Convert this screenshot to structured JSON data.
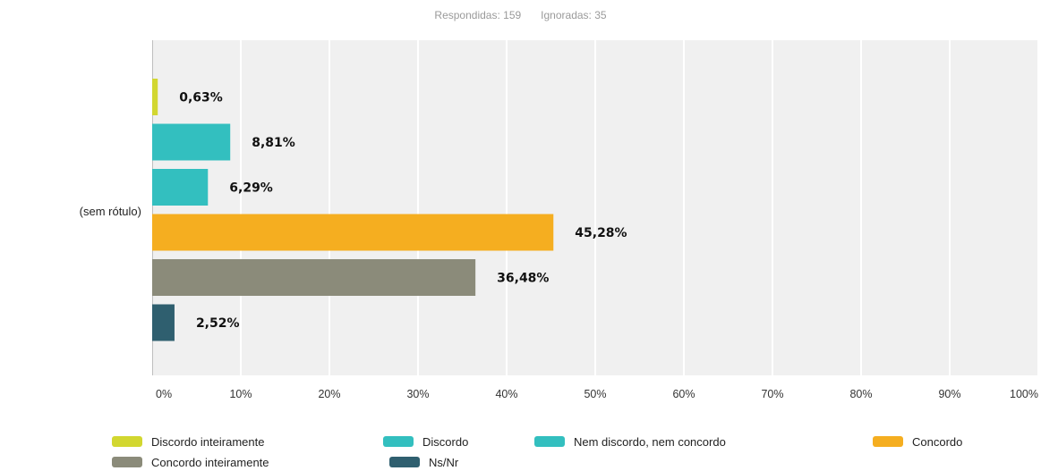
{
  "summary": {
    "answered_label": "Respondidas: 159",
    "skipped_label": "Ignoradas: 35"
  },
  "chart_data": {
    "type": "bar",
    "orientation": "horizontal",
    "categories": [
      "(sem rótulo)"
    ],
    "series": [
      {
        "name": "Discordo inteiramente",
        "values": [
          0.63
        ],
        "label": "0,63%",
        "color": "#d2d730"
      },
      {
        "name": "Discordo",
        "values": [
          8.81
        ],
        "label": "8,81%",
        "color": "#33bfbf"
      },
      {
        "name": "Nem discordo, nem concordo",
        "values": [
          6.29
        ],
        "label": "6,29%",
        "color": "#33bfbf"
      },
      {
        "name": "Concordo",
        "values": [
          45.28
        ],
        "label": "45,28%",
        "color": "#f5ae20"
      },
      {
        "name": "Concordo inteiramente",
        "values": [
          36.48
        ],
        "label": "36,48%",
        "color": "#8b8b7a"
      },
      {
        "name": "Ns/Nr",
        "values": [
          2.52
        ],
        "label": "2,52%",
        "color": "#2f5f6f"
      }
    ],
    "xlim": [
      0,
      100
    ],
    "x_ticks": [
      "0%",
      "10%",
      "20%",
      "30%",
      "40%",
      "50%",
      "60%",
      "70%",
      "80%",
      "90%",
      "100%"
    ],
    "grid": true,
    "legend_position": "bottom",
    "title": "",
    "xlabel": "",
    "ylabel": ""
  }
}
